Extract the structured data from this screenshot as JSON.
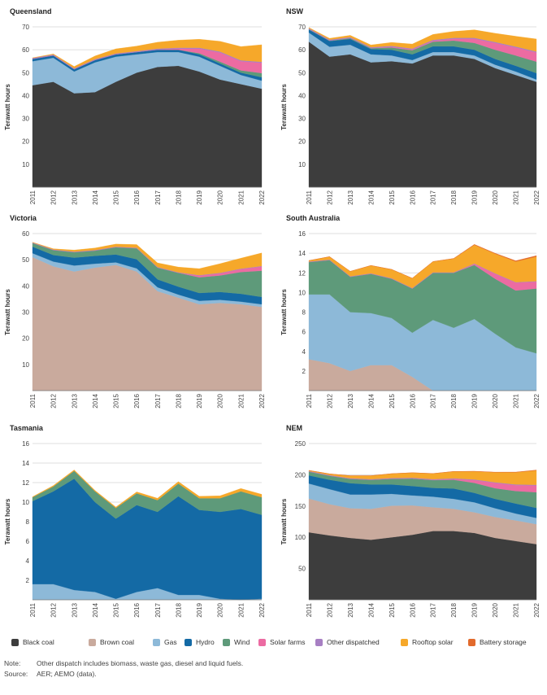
{
  "chart_data": [
    {
      "type": "area",
      "title": "Queensland",
      "ylabel": "Terawatt hours",
      "ylim": [
        0,
        70
      ],
      "yticks": [
        10,
        20,
        30,
        40,
        50,
        60,
        70
      ],
      "x": [
        "2011",
        "2012",
        "2013",
        "2014",
        "2015",
        "2016",
        "2017",
        "2018",
        "2019",
        "2020",
        "2021",
        "2022"
      ],
      "series": [
        {
          "name": "Black coal",
          "values": [
            44.5,
            46,
            41,
            41.5,
            46,
            50,
            52.5,
            53,
            50.5,
            47,
            45,
            43
          ]
        },
        {
          "name": "Brown coal",
          "values": [
            0,
            0,
            0,
            0,
            0,
            0,
            0,
            0,
            0,
            0,
            0,
            0
          ]
        },
        {
          "name": "Gas",
          "values": [
            10.5,
            10.5,
            9.5,
            13,
            11,
            8,
            6.5,
            6,
            6.5,
            6,
            4,
            3.5
          ]
        },
        {
          "name": "Hydro",
          "values": [
            1,
            1,
            1,
            1,
            1,
            1,
            1,
            1,
            1,
            1,
            1,
            1.5
          ]
        },
        {
          "name": "Wind",
          "values": [
            0,
            0,
            0,
            0,
            0,
            0,
            0,
            0,
            0.5,
            0.8,
            1,
            1.8
          ]
        },
        {
          "name": "Solar farms",
          "values": [
            0,
            0,
            0,
            0,
            0,
            0,
            0.1,
            0.5,
            2,
            4,
            4,
            4.5
          ]
        },
        {
          "name": "Other dispatched",
          "values": [
            0.4,
            0.4,
            0.4,
            0.4,
            0.4,
            0.4,
            0.4,
            0.4,
            0.4,
            0.4,
            0.4,
            0.4
          ]
        },
        {
          "name": "Rooftop solar",
          "values": [
            0.1,
            0.3,
            0.8,
            1.4,
            2,
            2.2,
            2.8,
            3.3,
            3.7,
            4.5,
            6,
            7.5
          ]
        },
        {
          "name": "Battery storage",
          "values": [
            0,
            0,
            0,
            0,
            0,
            0,
            0,
            0,
            0,
            0,
            0,
            0
          ]
        }
      ]
    },
    {
      "type": "area",
      "title": "NSW",
      "ylabel": "Terawatt hours",
      "ylim": [
        0,
        70
      ],
      "yticks": [
        10,
        20,
        30,
        40,
        50,
        60,
        70
      ],
      "x": [
        "2011",
        "2012",
        "2013",
        "2014",
        "2015",
        "2016",
        "2017",
        "2018",
        "2019",
        "2020",
        "2021",
        "2022"
      ],
      "series": [
        {
          "name": "Black coal",
          "values": [
            63.5,
            57,
            58,
            54.5,
            55,
            54,
            57.5,
            57.5,
            56,
            52,
            49,
            46
          ]
        },
        {
          "name": "Brown coal",
          "values": [
            0,
            0,
            0,
            0,
            0,
            0,
            0,
            0,
            0,
            0,
            0,
            0
          ]
        },
        {
          "name": "Gas",
          "values": [
            4,
            4.3,
            4.2,
            3.5,
            2.5,
            1.5,
            1.5,
            1.5,
            1.5,
            1.5,
            1.5,
            1
          ]
        },
        {
          "name": "Hydro",
          "values": [
            1.3,
            2.5,
            2.5,
            2.3,
            2.5,
            2.5,
            2.5,
            2.5,
            2.5,
            2.5,
            2.5,
            2.8
          ]
        },
        {
          "name": "Wind",
          "values": [
            0.2,
            0.2,
            0.4,
            0.4,
            1,
            1.8,
            2,
            2.5,
            3,
            4,
            4.5,
            5
          ]
        },
        {
          "name": "Solar farms",
          "values": [
            0,
            0,
            0,
            0,
            0.3,
            0.3,
            0.4,
            0.8,
            1.8,
            3,
            3.5,
            4
          ]
        },
        {
          "name": "Other dispatched",
          "values": [
            0.4,
            0.4,
            0.4,
            0.4,
            0.4,
            0.4,
            0.4,
            0.4,
            0.4,
            0.4,
            0.4,
            0.4
          ]
        },
        {
          "name": "Rooftop solar",
          "values": [
            0.3,
            0.6,
            0.8,
            1,
            1.5,
            2,
            2.4,
            2.8,
            3.5,
            3.8,
            4.5,
            5.5
          ]
        },
        {
          "name": "Battery storage",
          "values": [
            0,
            0,
            0,
            0,
            0,
            0,
            0,
            0,
            0,
            0,
            0,
            0
          ]
        }
      ]
    },
    {
      "type": "area",
      "title": "Victoria",
      "ylabel": "Terawatt hours",
      "ylim": [
        0,
        60
      ],
      "yticks": [
        10,
        20,
        30,
        40,
        50,
        60
      ],
      "x": [
        "2011",
        "2012",
        "2013",
        "2014",
        "2015",
        "2016",
        "2017",
        "2018",
        "2019",
        "2020",
        "2021",
        "2022"
      ],
      "series": [
        {
          "name": "Black coal",
          "values": [
            0,
            0,
            0,
            0,
            0,
            0,
            0,
            0,
            0,
            0,
            0,
            0
          ]
        },
        {
          "name": "Brown coal",
          "values": [
            51,
            47.5,
            45.5,
            47,
            48,
            45.5,
            38,
            35.5,
            33,
            33.5,
            33,
            32
          ]
        },
        {
          "name": "Gas",
          "values": [
            1.5,
            1.8,
            2.3,
            1.5,
            1,
            1.2,
            1.5,
            1.2,
            1.3,
            1.2,
            1,
            1
          ]
        },
        {
          "name": "Hydro",
          "values": [
            2.5,
            2.5,
            3,
            3,
            3,
            3.5,
            3,
            3,
            3,
            3,
            3,
            2.8
          ]
        },
        {
          "name": "Wind",
          "values": [
            1.4,
            1.9,
            2.1,
            2,
            2.8,
            4.2,
            4.5,
            5.3,
            6,
            6.3,
            8.3,
            10
          ]
        },
        {
          "name": "Solar farms",
          "values": [
            0,
            0,
            0,
            0,
            0,
            0,
            0,
            0,
            0.6,
            0.8,
            1.1,
            1.6
          ]
        },
        {
          "name": "Other dispatched",
          "values": [
            0.2,
            0.2,
            0.2,
            0.2,
            0.2,
            0.2,
            0.2,
            0.2,
            0.2,
            0.2,
            0.2,
            0.2
          ]
        },
        {
          "name": "Rooftop solar",
          "values": [
            0.1,
            0.3,
            0.6,
            0.8,
            1,
            1.2,
            1.6,
            2,
            2.5,
            3.5,
            4,
            5
          ]
        },
        {
          "name": "Battery storage",
          "values": [
            0,
            0,
            0,
            0,
            0,
            0,
            0,
            0,
            0,
            0,
            0,
            0
          ]
        }
      ]
    },
    {
      "type": "area",
      "title": "South Australia",
      "ylabel": "Terawatt hours",
      "ylim": [
        0,
        16
      ],
      "yticks": [
        2,
        4,
        6,
        8,
        10,
        12,
        14,
        16
      ],
      "x": [
        "2011",
        "2012",
        "2013",
        "2014",
        "2015",
        "2016",
        "2017",
        "2018",
        "2019",
        "2020",
        "2021",
        "2022"
      ],
      "series": [
        {
          "name": "Black coal",
          "values": [
            0,
            0,
            0,
            0,
            0,
            0,
            0,
            0,
            0,
            0,
            0,
            0
          ]
        },
        {
          "name": "Brown coal",
          "values": [
            3.2,
            2.8,
            2,
            2.6,
            2.6,
            1.4,
            0,
            0,
            0,
            0,
            0,
            0
          ]
        },
        {
          "name": "Gas",
          "values": [
            6.6,
            7,
            6,
            5.3,
            4.8,
            4.5,
            7.2,
            6.4,
            7.3,
            5.8,
            4.4,
            3.8
          ]
        },
        {
          "name": "Hydro",
          "values": [
            0,
            0,
            0,
            0,
            0,
            0,
            0,
            0,
            0,
            0,
            0,
            0
          ]
        },
        {
          "name": "Wind",
          "values": [
            3.3,
            3.5,
            3.6,
            4,
            4,
            4.5,
            4.8,
            5.6,
            5.5,
            5.6,
            5.8,
            6.6
          ]
        },
        {
          "name": "Solar farms",
          "values": [
            0,
            0,
            0,
            0,
            0,
            0,
            0,
            0,
            0.1,
            0.5,
            0.8,
            0.7
          ]
        },
        {
          "name": "Other dispatched",
          "values": [
            0.05,
            0.05,
            0.05,
            0.05,
            0.05,
            0.05,
            0.05,
            0.05,
            0.05,
            0.05,
            0.05,
            0.05
          ]
        },
        {
          "name": "Rooftop solar",
          "values": [
            0.1,
            0.3,
            0.5,
            0.8,
            0.9,
            1,
            1.1,
            1.4,
            1.9,
            2,
            2.1,
            2.5
          ]
        },
        {
          "name": "Battery storage",
          "values": [
            0,
            0,
            0,
            0,
            0,
            0,
            0,
            0.02,
            0.05,
            0.05,
            0.08,
            0.1
          ]
        }
      ]
    },
    {
      "type": "area",
      "title": "Tasmania",
      "ylabel": "Terawatt hours",
      "ylim": [
        0,
        16
      ],
      "yticks": [
        2,
        4,
        6,
        8,
        10,
        12,
        14,
        16
      ],
      "x": [
        "2011",
        "2012",
        "2013",
        "2014",
        "2015",
        "2016",
        "2017",
        "2018",
        "2019",
        "2020",
        "2021",
        "2022"
      ],
      "series": [
        {
          "name": "Black coal",
          "values": [
            0,
            0,
            0,
            0,
            0,
            0,
            0,
            0,
            0,
            0,
            0,
            0
          ]
        },
        {
          "name": "Brown coal",
          "values": [
            0,
            0,
            0,
            0,
            0,
            0,
            0,
            0,
            0,
            0,
            0,
            0
          ]
        },
        {
          "name": "Gas",
          "values": [
            1.6,
            1.6,
            1,
            0.8,
            0.1,
            0.8,
            1.2,
            0.5,
            0.5,
            0.1,
            0,
            0.1
          ]
        },
        {
          "name": "Hydro",
          "values": [
            8.5,
            9.5,
            11.4,
            9.2,
            8.2,
            8.9,
            7.8,
            10.1,
            8.7,
            8.9,
            9.3,
            8.6
          ]
        },
        {
          "name": "Wind",
          "values": [
            0.4,
            0.5,
            0.8,
            1.1,
            1.1,
            1.2,
            1.2,
            1.3,
            1.2,
            1.4,
            1.8,
            1.8
          ]
        },
        {
          "name": "Solar farms",
          "values": [
            0,
            0,
            0,
            0,
            0,
            0,
            0,
            0,
            0,
            0,
            0,
            0
          ]
        },
        {
          "name": "Other dispatched",
          "values": [
            0,
            0,
            0,
            0,
            0,
            0,
            0,
            0,
            0,
            0,
            0,
            0
          ]
        },
        {
          "name": "Rooftop solar",
          "values": [
            0.05,
            0.1,
            0.1,
            0.1,
            0.1,
            0.15,
            0.2,
            0.2,
            0.2,
            0.25,
            0.3,
            0.3
          ]
        },
        {
          "name": "Battery storage",
          "values": [
            0,
            0,
            0,
            0,
            0,
            0,
            0,
            0,
            0,
            0,
            0,
            0
          ]
        }
      ]
    },
    {
      "type": "area",
      "title": "NEM",
      "ylabel": "Terawatt hours",
      "ylim": [
        0,
        250
      ],
      "yticks": [
        50,
        100,
        150,
        200,
        250
      ],
      "x": [
        "2011",
        "2012",
        "2013",
        "2014",
        "2015",
        "2016",
        "2017",
        "2018",
        "2019",
        "2020",
        "2021",
        "2022"
      ],
      "series": [
        {
          "name": "Black coal",
          "values": [
            108,
            103,
            99,
            96,
            100,
            104,
            110,
            110,
            107,
            99,
            94,
            89
          ]
        },
        {
          "name": "Brown coal",
          "values": [
            54,
            50,
            47.5,
            49.5,
            50.5,
            47,
            38,
            35.5,
            33,
            33.5,
            33,
            32
          ]
        },
        {
          "name": "Gas",
          "values": [
            24,
            24,
            22,
            23,
            19,
            16,
            17,
            16,
            16,
            14,
            11,
            10
          ]
        },
        {
          "name": "Hydro",
          "values": [
            13,
            15,
            18,
            16,
            15,
            15,
            14,
            16.5,
            15,
            15,
            16,
            16
          ]
        },
        {
          "name": "Wind",
          "values": [
            6,
            6.5,
            7,
            7.5,
            9,
            12,
            12.5,
            14,
            16,
            17,
            20,
            25
          ]
        },
        {
          "name": "Solar farms",
          "values": [
            0,
            0,
            0,
            0,
            0.3,
            0.3,
            0.5,
            1.3,
            4.5,
            8.5,
            9.5,
            11
          ]
        },
        {
          "name": "Other dispatched",
          "values": [
            1,
            1,
            1,
            1,
            1,
            1,
            1,
            1,
            1,
            1,
            1,
            1
          ]
        },
        {
          "name": "Rooftop solar",
          "values": [
            1,
            2,
            4,
            5.5,
            7,
            8,
            9,
            11,
            13,
            16,
            19.5,
            23
          ]
        },
        {
          "name": "Battery storage",
          "values": [
            0,
            0,
            0,
            0,
            0,
            0,
            0,
            0.1,
            0.2,
            0.3,
            0.4,
            0.6
          ]
        }
      ]
    }
  ],
  "legend": [
    {
      "name": "Black coal",
      "color": "#3d3d3d"
    },
    {
      "name": "Brown coal",
      "color": "#c9aa9d"
    },
    {
      "name": "Gas",
      "color": "#8db9d8"
    },
    {
      "name": "Hydro",
      "color": "#146aa5"
    },
    {
      "name": "Wind",
      "color": "#5e9a7a"
    },
    {
      "name": "Solar farms",
      "color": "#ec6ba2"
    },
    {
      "name": "Other dispatched",
      "color": "#a77fc3"
    },
    {
      "name": "Rooftop solar",
      "color": "#f6a82a"
    },
    {
      "name": "Battery storage",
      "color": "#e26a2c"
    }
  ],
  "footer": {
    "note_label": "Note:",
    "note_text": "Other dispatch includes biomass, waste gas, diesel and liquid fuels.",
    "source_label": "Source:",
    "source_text": "AER; AEMO (data)."
  }
}
